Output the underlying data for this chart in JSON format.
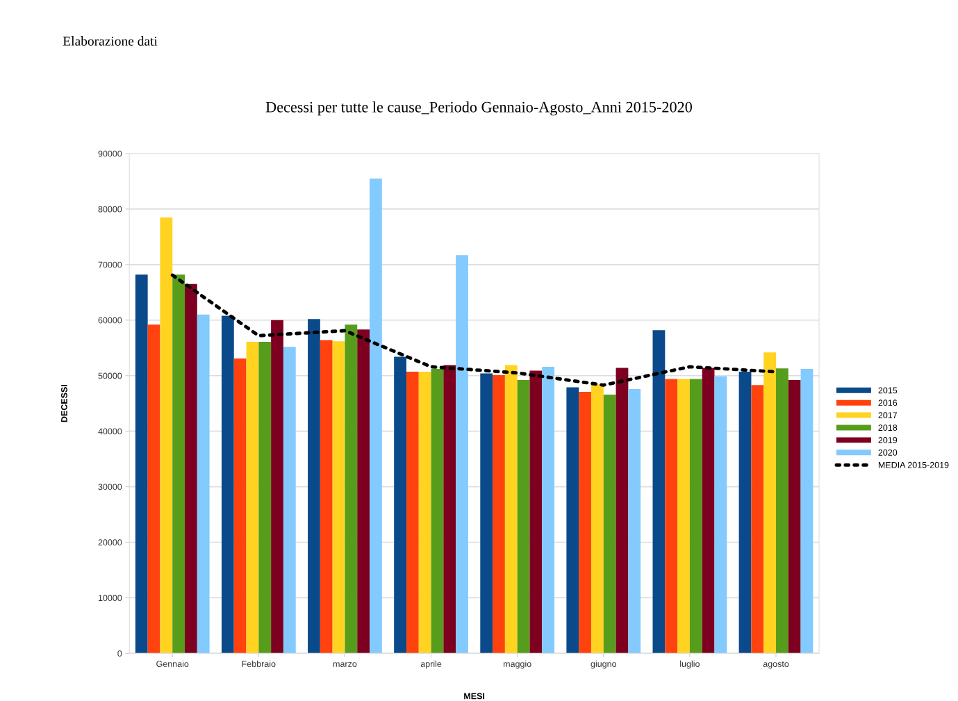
{
  "chart_data": {
    "type": "bar",
    "title": "Decessi per tutte le cause_Periodo Gennaio-Agosto_Anni 2015-2020",
    "xlabel": "MESI",
    "ylabel": "DECESSI",
    "annotations": [
      "Elaborazione dati"
    ],
    "categories": [
      "Gennaio",
      "Febbraio",
      "marzo",
      "aprile",
      "maggio",
      "giugno",
      "luglio",
      "agosto"
    ],
    "series": [
      {
        "name": "2015",
        "color": "#0a4a8a",
        "values": [
          68200,
          60800,
          60200,
          53400,
          50400,
          47900,
          58200,
          50700
        ]
      },
      {
        "name": "2016",
        "color": "#ff420e",
        "values": [
          59200,
          53100,
          56400,
          50700,
          50100,
          47100,
          49400,
          48300
        ]
      },
      {
        "name": "2017",
        "color": "#ffd320",
        "values": [
          78500,
          56100,
          56200,
          50700,
          51900,
          48400,
          49400,
          54200
        ]
      },
      {
        "name": "2018",
        "color": "#579d1c",
        "values": [
          68200,
          56100,
          59200,
          51200,
          49200,
          46600,
          49400,
          51300
        ]
      },
      {
        "name": "2019",
        "color": "#7e0021",
        "values": [
          66500,
          60000,
          58300,
          51900,
          50900,
          51400,
          51400,
          49200
        ]
      },
      {
        "name": "2020",
        "color": "#83caff",
        "values": [
          61000,
          55200,
          85500,
          71700,
          51600,
          47600,
          49900,
          51200
        ]
      },
      {
        "name": "MEDIA 2015-2019",
        "type": "line",
        "color": "#000000",
        "line_style": "dotted",
        "values": [
          68100,
          57200,
          58100,
          51600,
          50500,
          48300,
          51600,
          50700
        ]
      }
    ],
    "ylim": [
      0,
      90000
    ],
    "yticks": [
      0,
      10000,
      20000,
      30000,
      40000,
      50000,
      60000,
      70000,
      80000,
      90000
    ],
    "grid": "y",
    "legend": "right"
  }
}
